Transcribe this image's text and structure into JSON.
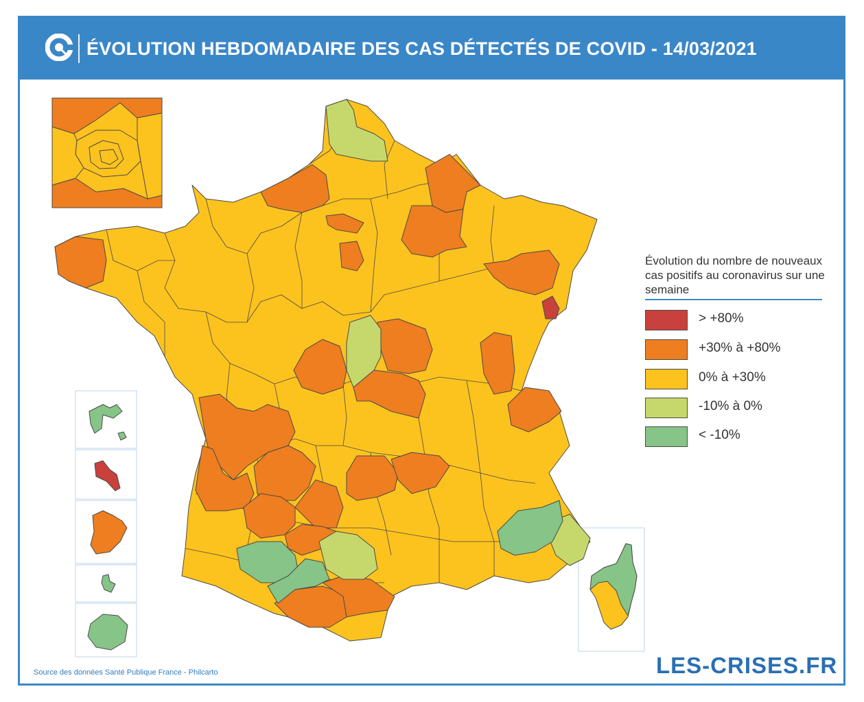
{
  "header": {
    "title": "ÉVOLUTION HEBDOMADAIRE DES CAS DÉTECTÉS DE COVID - 14/03/2021"
  },
  "legend": {
    "title": "Évolution du nombre de nouveaux cas positifs au coronavirus sur une semaine",
    "items": [
      {
        "label": "> +80%",
        "color": "#c8413c"
      },
      {
        "label": "+30% à +80%",
        "color": "#ee7e1f"
      },
      {
        "label": "0% à +30%",
        "color": "#fcc21e"
      },
      {
        "label": "-10% à 0%",
        "color": "#c6d86b"
      },
      {
        "label": "< -10%",
        "color": "#86c487"
      }
    ]
  },
  "footer": {
    "source": "Source des données Santé Publique France - Philcarto",
    "brand": "LES-CRISES.FR"
  },
  "colors": {
    "header_blue": "#3a87c8",
    "over_80": "#c8413c",
    "30_to_80": "#ee7e1f",
    "0_to_30": "#fcc21e",
    "minus10_to_0": "#c6d86b",
    "under_minus10": "#86c487"
  }
}
